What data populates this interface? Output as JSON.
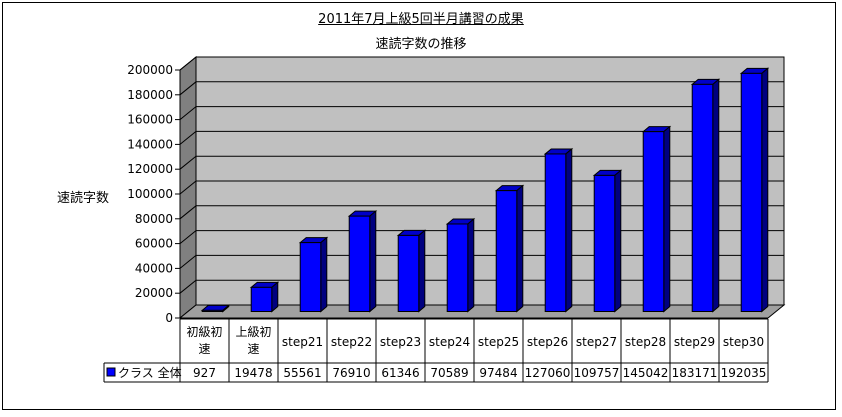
{
  "chart_data": {
    "type": "bar",
    "title": "2011年7月上級5回半月講習の成果",
    "subtitle": "速読字数の推移",
    "ylabel": "速読字数",
    "xlabel": "",
    "ylim": [
      0,
      200000
    ],
    "yticks": [
      "0",
      "20000",
      "40000",
      "60000",
      "80000",
      "100000",
      "120000",
      "140000",
      "160000",
      "180000",
      "200000"
    ],
    "grid": true,
    "three_d": true,
    "categories": [
      [
        "初級初",
        "速"
      ],
      [
        "上級初",
        "速"
      ],
      [
        "step21"
      ],
      [
        "step22"
      ],
      [
        "step23"
      ],
      [
        "step24"
      ],
      [
        "step25"
      ],
      [
        "step26"
      ],
      [
        "step27"
      ],
      [
        "step28"
      ],
      [
        "step29"
      ],
      [
        "step30"
      ]
    ],
    "series": [
      {
        "name": "クラス 全体",
        "color": "#0000ff",
        "values": [
          927,
          19478,
          55561,
          76910,
          61346,
          70589,
          97484,
          127060,
          109757,
          145042,
          183171,
          192035
        ],
        "labels": [
          "927",
          "19478",
          "55561",
          "76910",
          "61346",
          "70589",
          "97484",
          "127060",
          "109757",
          "145042",
          "183171",
          "192035"
        ]
      }
    ]
  },
  "colors": {
    "plot_back": "#c0c0c0",
    "plot_side": "#808080",
    "plot_floor": "#a0a0a0",
    "bar_front": "#0000ff",
    "bar_side": "#000080",
    "bar_top": "#0000c8"
  }
}
